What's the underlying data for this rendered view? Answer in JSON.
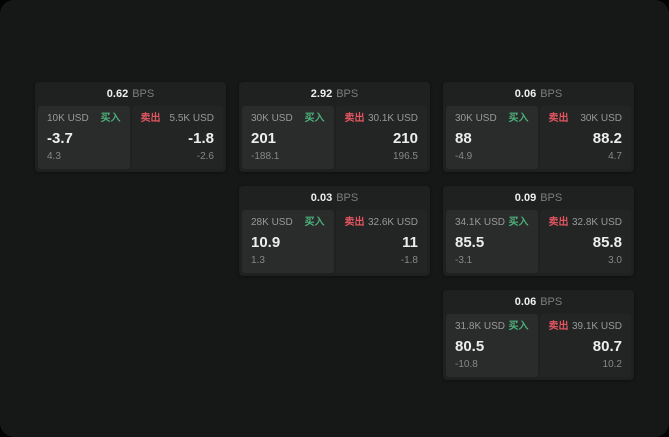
{
  "colors": {
    "buy_green": "#4caf7a",
    "sell_red": "#e0555f",
    "app_background": "#161717"
  },
  "cards": [
    {
      "bps_value": "0.62",
      "bps_unit": "BPS",
      "buy": {
        "size": "10K USD",
        "label": "买入",
        "price": "-3.7",
        "delta": "4.3"
      },
      "sell": {
        "label": "卖出",
        "size": "5.5K USD",
        "price": "-1.8",
        "delta": "-2.6"
      }
    },
    {
      "bps_value": "2.92",
      "bps_unit": "BPS",
      "buy": {
        "size": "30K USD",
        "label": "买入",
        "price": "201",
        "delta": "-188.1"
      },
      "sell": {
        "label": "卖出",
        "size": "30.1K USD",
        "price": "210",
        "delta": "196.5"
      }
    },
    {
      "bps_value": "0.06",
      "bps_unit": "BPS",
      "buy": {
        "size": "30K USD",
        "label": "买入",
        "price": "88",
        "delta": "-4.9"
      },
      "sell": {
        "label": "卖出",
        "size": "30K USD",
        "price": "88.2",
        "delta": "4.7"
      }
    },
    {
      "bps_value": "0.03",
      "bps_unit": "BPS",
      "buy": {
        "size": "28K USD",
        "label": "买入",
        "price": "10.9",
        "delta": "1.3"
      },
      "sell": {
        "label": "卖出",
        "size": "32.6K USD",
        "price": "11",
        "delta": "-1.8"
      }
    },
    {
      "bps_value": "0.09",
      "bps_unit": "BPS",
      "buy": {
        "size": "34.1K USD",
        "label": "买入",
        "price": "85.5",
        "delta": "-3.1"
      },
      "sell": {
        "label": "卖出",
        "size": "32.8K USD",
        "price": "85.8",
        "delta": "3.0"
      }
    },
    {
      "bps_value": "0.06",
      "bps_unit": "BPS",
      "buy": {
        "size": "31.8K USD",
        "label": "买入",
        "price": "80.5",
        "delta": "-10.8"
      },
      "sell": {
        "label": "卖出",
        "size": "39.1K USD",
        "price": "80.7",
        "delta": "10.2"
      }
    }
  ]
}
